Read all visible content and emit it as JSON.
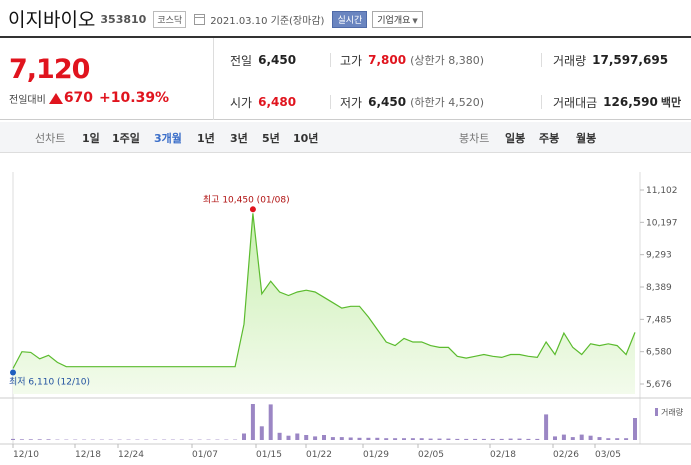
{
  "header": {
    "name": "이지바이오",
    "code": "353810",
    "market": "코스닥",
    "date": "2021.03.10 기준(장마감)",
    "realtime_label": "실시간",
    "corp_label": "기업개요"
  },
  "price": {
    "current": "7,120",
    "change_label": "전일대비",
    "change_amount": "670",
    "change_pct": "+10.39%"
  },
  "stats": {
    "prev_close_label": "전일",
    "prev_close": "6,450",
    "high_label": "고가",
    "high": "7,800",
    "high_limit": "(상한가 8,380)",
    "volume_label": "거래량",
    "volume": "17,597,695",
    "open_label": "시가",
    "open": "6,480",
    "low_label": "저가",
    "low": "6,450",
    "low_limit": "(하한가 4,520)",
    "amount_label": "거래대금",
    "amount": "126,590",
    "amount_unit": "백만"
  },
  "tabs": {
    "line_label": "선차트",
    "line_items": [
      "1일",
      "1주일",
      "3개월",
      "1년",
      "3년",
      "5년",
      "10년"
    ],
    "active": "3개월",
    "candle_label": "봉차트",
    "candle_items": [
      "일봉",
      "주봉",
      "월봉"
    ]
  },
  "colors": {
    "up": "#e0141e",
    "line": "#5bbb2e",
    "fill_top": "#c9efb1",
    "volume": "#9b86c4",
    "active_tab": "#3a6ec9"
  },
  "chart_data": {
    "type": "area",
    "y_ticks": [
      "11,102",
      "10,197",
      "9,293",
      "8,389",
      "7,485",
      "6,580",
      "5,676"
    ],
    "ylim": [
      5676,
      11102
    ],
    "x_labels": [
      "12/10",
      "12/18",
      "12/24",
      "01/07",
      "01/15",
      "01/22",
      "01/29",
      "02/05",
      "02/18",
      "02/26",
      "03/05"
    ],
    "max_label": "최고 10,450 (01/08)",
    "min_label": "최저 6,110 (12/10)",
    "volume_label": "거래량",
    "prices": [
      6110,
      6580,
      6560,
      6380,
      6480,
      6280,
      6160,
      6160,
      6160,
      6160,
      6160,
      6160,
      6160,
      6160,
      6160,
      6160,
      6160,
      6160,
      6160,
      6160,
      6160,
      6160,
      6160,
      6160,
      6160,
      6160,
      7350,
      10450,
      8200,
      8550,
      8250,
      8150,
      8250,
      8300,
      8250,
      8100,
      7950,
      7800,
      7850,
      7850,
      7550,
      7200,
      6850,
      6750,
      6950,
      6850,
      6850,
      6750,
      6700,
      6700,
      6450,
      6400,
      6450,
      6500,
      6450,
      6420,
      6500,
      6500,
      6450,
      6420,
      6850,
      6500,
      7100,
      6700,
      6500,
      6800,
      6750,
      6800,
      6750,
      6500,
      7120
    ],
    "volumes": [
      0.03,
      0.02,
      0.02,
      0.02,
      0.02,
      0.01,
      0.01,
      0.01,
      0.01,
      0.01,
      0.01,
      0.01,
      0.01,
      0.01,
      0.01,
      0.01,
      0.01,
      0.01,
      0.01,
      0.01,
      0.01,
      0.01,
      0.01,
      0.01,
      0.01,
      0.01,
      0.18,
      1.0,
      0.38,
      0.99,
      0.2,
      0.12,
      0.18,
      0.14,
      0.1,
      0.14,
      0.08,
      0.08,
      0.07,
      0.06,
      0.06,
      0.06,
      0.05,
      0.05,
      0.05,
      0.05,
      0.05,
      0.04,
      0.04,
      0.04,
      0.03,
      0.03,
      0.03,
      0.03,
      0.03,
      0.03,
      0.04,
      0.04,
      0.03,
      0.03,
      0.71,
      0.1,
      0.15,
      0.08,
      0.15,
      0.12,
      0.08,
      0.05,
      0.05,
      0.05,
      0.61
    ]
  }
}
